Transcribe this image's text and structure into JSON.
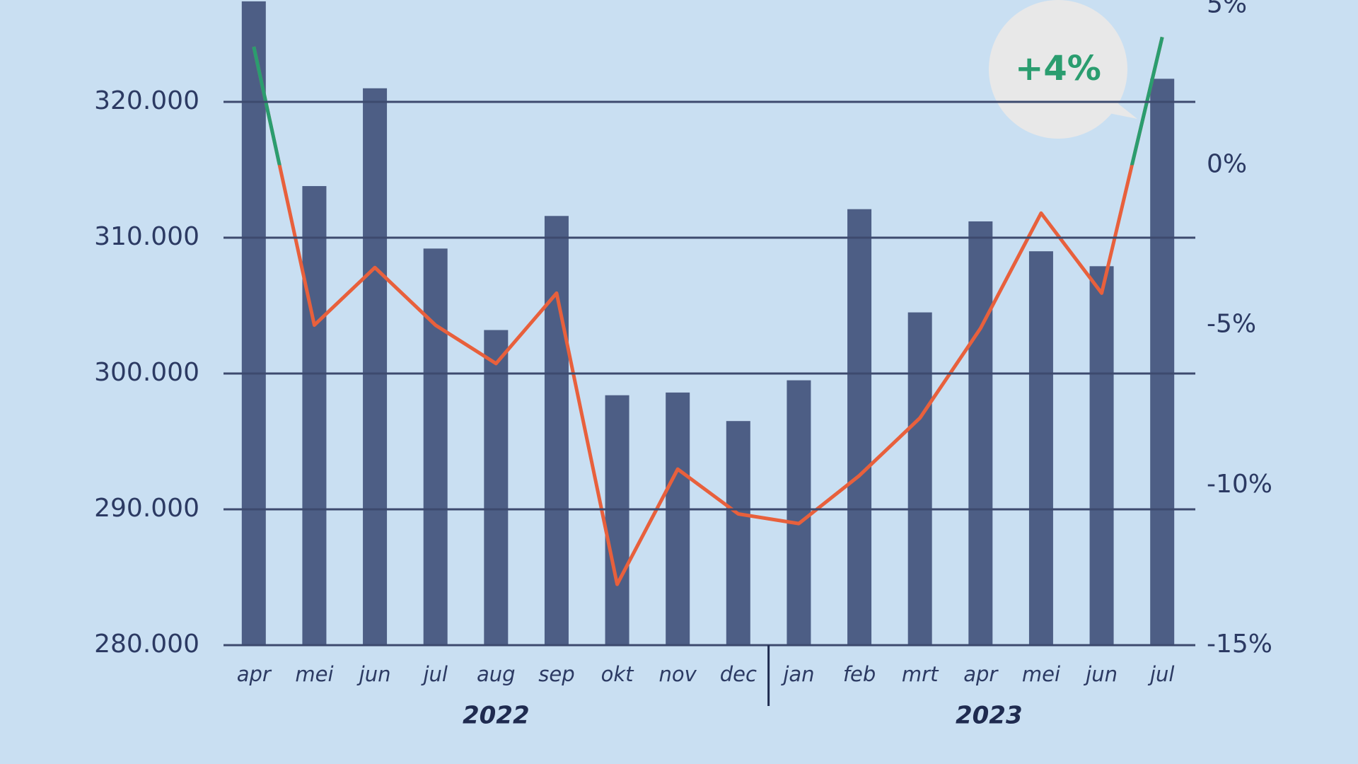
{
  "chart_data": {
    "type": "bar_line",
    "categories": [
      "apr",
      "mei",
      "jun",
      "jul",
      "aug",
      "sep",
      "okt",
      "nov",
      "dec",
      "jan",
      "feb",
      "mrt",
      "apr",
      "mei",
      "jun",
      "jul"
    ],
    "year_labels": [
      "2022",
      "2023"
    ],
    "series": [
      {
        "type": "bar",
        "color": "#4d5e85",
        "values": [
          327400,
          313800,
          321000,
          309200,
          303200,
          311600,
          298400,
          298600,
          296500,
          299500,
          312100,
          304500,
          311200,
          309000,
          307900,
          321700
        ]
      },
      {
        "type": "line",
        "axis": "y2",
        "color": "#e8603c",
        "positive_color": "#2a9d6f",
        "values": [
          3.7,
          -5.0,
          -3.2,
          -5.0,
          -6.2,
          -4.0,
          -13.1,
          -9.5,
          -10.9,
          -11.2,
          -9.7,
          -7.9,
          -5.1,
          -1.5,
          -4.0,
          4.0
        ]
      }
    ],
    "ylim": [
      280000,
      327500
    ],
    "yticks": [
      {
        "value": 280000,
        "label": "280.000"
      },
      {
        "value": 290000,
        "label": "290.000"
      },
      {
        "value": 300000,
        "label": "300.000"
      },
      {
        "value": 310000,
        "label": "310.000"
      },
      {
        "value": 320000,
        "label": "320.000"
      }
    ],
    "y2lim": [
      -15,
      5.16
    ],
    "y2ticks": [
      {
        "value": -15,
        "label": "-15%"
      },
      {
        "value": -10,
        "label": "-10%"
      },
      {
        "value": -5,
        "label": "-5%"
      },
      {
        "value": 0,
        "label": "0%"
      },
      {
        "value": 5,
        "label": "5%"
      }
    ],
    "annotation": "+4%",
    "grid": true
  }
}
